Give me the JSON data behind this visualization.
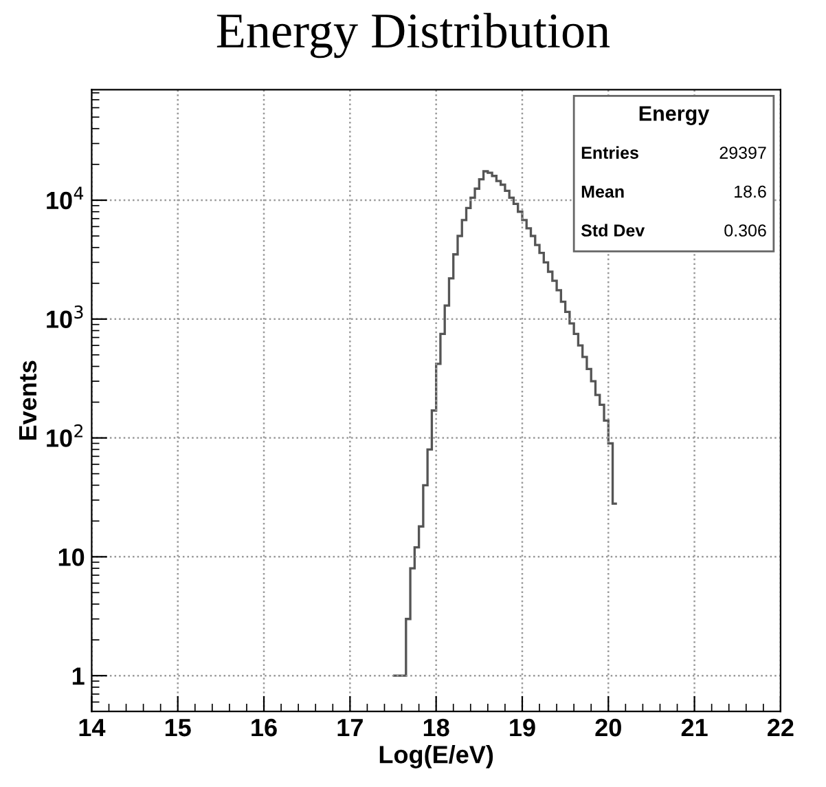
{
  "chart_data": {
    "type": "histogram",
    "title": "Energy Distribution",
    "xlabel": "Log(E/eV)",
    "ylabel": "Events",
    "annotations": [
      "Energy",
      "Entries 29397",
      "Mean 18.6",
      "Std Dev 0.306"
    ],
    "bins": [
      17.5,
      17.55,
      17.6,
      17.65,
      17.7,
      17.75,
      17.8,
      17.85,
      17.9,
      17.95,
      18.0,
      18.05,
      18.1,
      18.15,
      18.2,
      18.25,
      18.3,
      18.35,
      18.4,
      18.45,
      18.5,
      18.55,
      18.6,
      18.65,
      18.7,
      18.75,
      18.8,
      18.85,
      18.9,
      18.95,
      19.0,
      19.05,
      19.1,
      19.15,
      19.2,
      19.25,
      19.3,
      19.35,
      19.4,
      19.45,
      19.5,
      19.55,
      19.6,
      19.65,
      19.7,
      19.75,
      19.8,
      19.85,
      19.9,
      19.95,
      20.0,
      20.05,
      20.1
    ],
    "values": [
      1,
      1,
      1,
      3,
      8,
      12,
      18,
      40,
      80,
      170,
      420,
      750,
      1300,
      2200,
      3500,
      5000,
      6800,
      8600,
      10500,
      12500,
      15000,
      17500,
      17000,
      16000,
      14500,
      13500,
      12000,
      10500,
      9300,
      8000,
      6800,
      5800,
      5000,
      4200,
      3600,
      3000,
      2500,
      2100,
      1750,
      1400,
      1150,
      920,
      750,
      600,
      480,
      380,
      300,
      230,
      190,
      140,
      90,
      28
    ],
    "color": "#555555",
    "log": "y",
    "grid": true,
    "xlim": [
      14,
      22
    ],
    "xticks": [
      14,
      15,
      16,
      17,
      18,
      19,
      20,
      21,
      22
    ],
    "ylim": [
      0.5,
      85000
    ],
    "yticks": [
      1,
      10,
      {
        "value": 100,
        "label": "10$^{2}$"
      },
      {
        "value": 1000,
        "label": "10$^{3}$"
      },
      {
        "value": 10000,
        "label": "10$^{4}$"
      }
    ]
  }
}
